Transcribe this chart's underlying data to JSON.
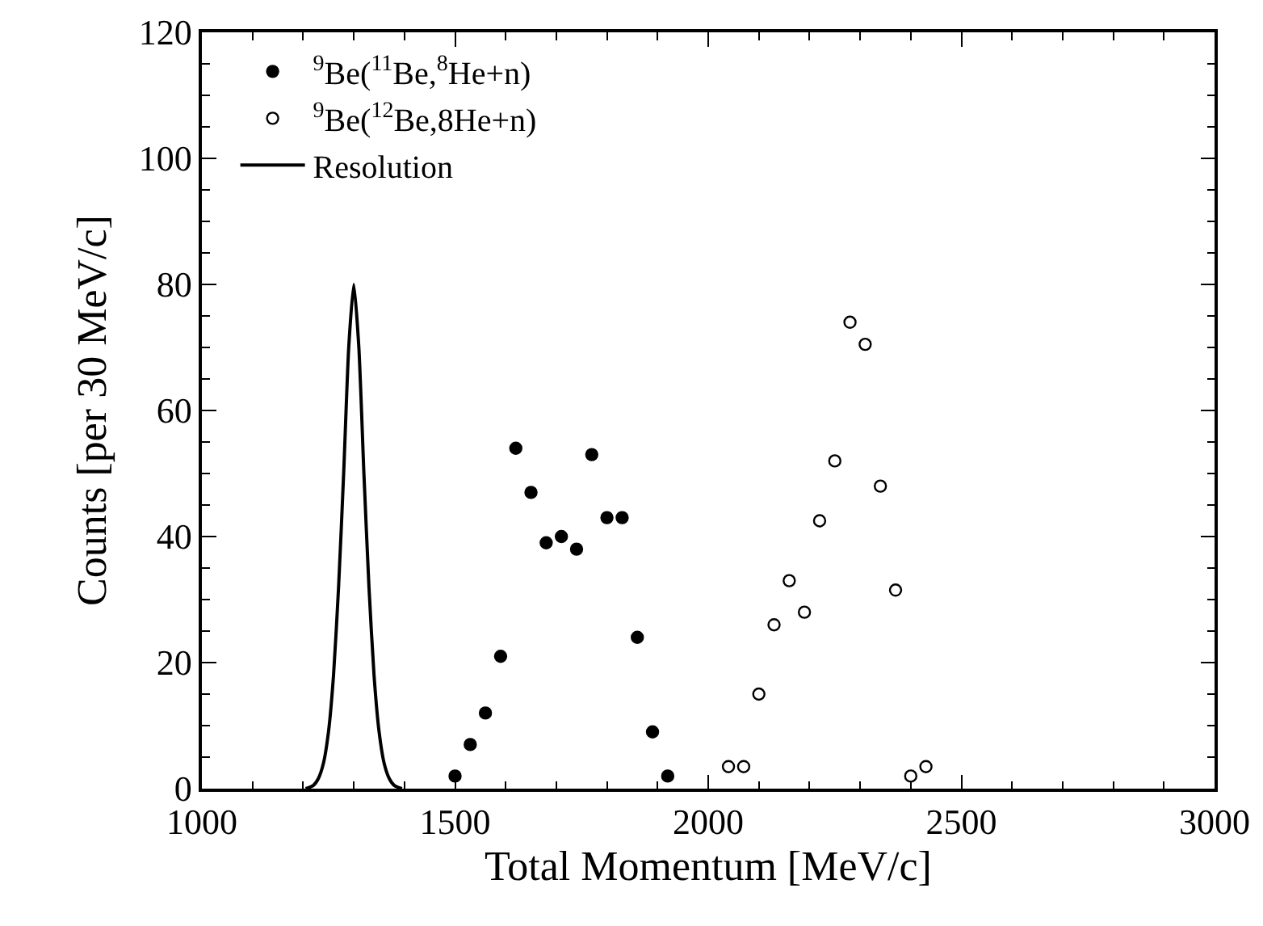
{
  "chart_data": {
    "type": "scatter",
    "xlabel": "Total Momentum [MeV/c]",
    "ylabel": "Counts [per 30 MeV/c]",
    "xlim": [
      1000,
      3000
    ],
    "xticks": [
      1000,
      1500,
      2000,
      2500,
      3000
    ],
    "ylim": [
      0,
      120
    ],
    "yticks": [
      0,
      20,
      40,
      60,
      80,
      100,
      120
    ],
    "grid": false,
    "legend": "top left",
    "series": [
      {
        "name": "$^{9}$Be($^{11}$Be,$^{8}$He+n)",
        "marker": "circle",
        "color": "#000000",
        "x": [
          1500,
          1530,
          1560,
          1590,
          1620,
          1650,
          1680,
          1710,
          1740,
          1770,
          1800,
          1830,
          1860,
          1890,
          1920
        ],
        "values": [
          2,
          7,
          12,
          21,
          54,
          47,
          39,
          40,
          38,
          53,
          43,
          43,
          24,
          9,
          2
        ]
      },
      {
        "name": "$^{9}$Be($^{12}$Be,8He+n)",
        "marker": "circle-open",
        "color": "#000000",
        "x": [
          2040,
          2070,
          2100,
          2130,
          2160,
          2190,
          2220,
          2250,
          2280,
          2310,
          2340,
          2370,
          2400,
          2430
        ],
        "values": [
          3.5,
          3.5,
          15,
          26,
          33,
          28,
          42.5,
          52,
          74,
          70.5,
          48,
          31.5,
          2,
          3.5
        ]
      },
      {
        "name": "Resolution",
        "type": "line",
        "marker": "none",
        "line_style": "solid",
        "color": "#000000",
        "x": [
          1205,
          1220,
          1230,
          1240,
          1250,
          1260,
          1270,
          1280,
          1290,
          1300,
          1310,
          1320,
          1330,
          1340,
          1350,
          1360,
          1370,
          1380,
          1395
        ],
        "values": [
          0,
          0.5,
          1.6,
          4,
          9,
          18,
          32,
          50,
          70,
          80,
          70,
          50,
          32,
          18,
          9,
          4,
          1.6,
          0.5,
          0
        ]
      }
    ]
  }
}
